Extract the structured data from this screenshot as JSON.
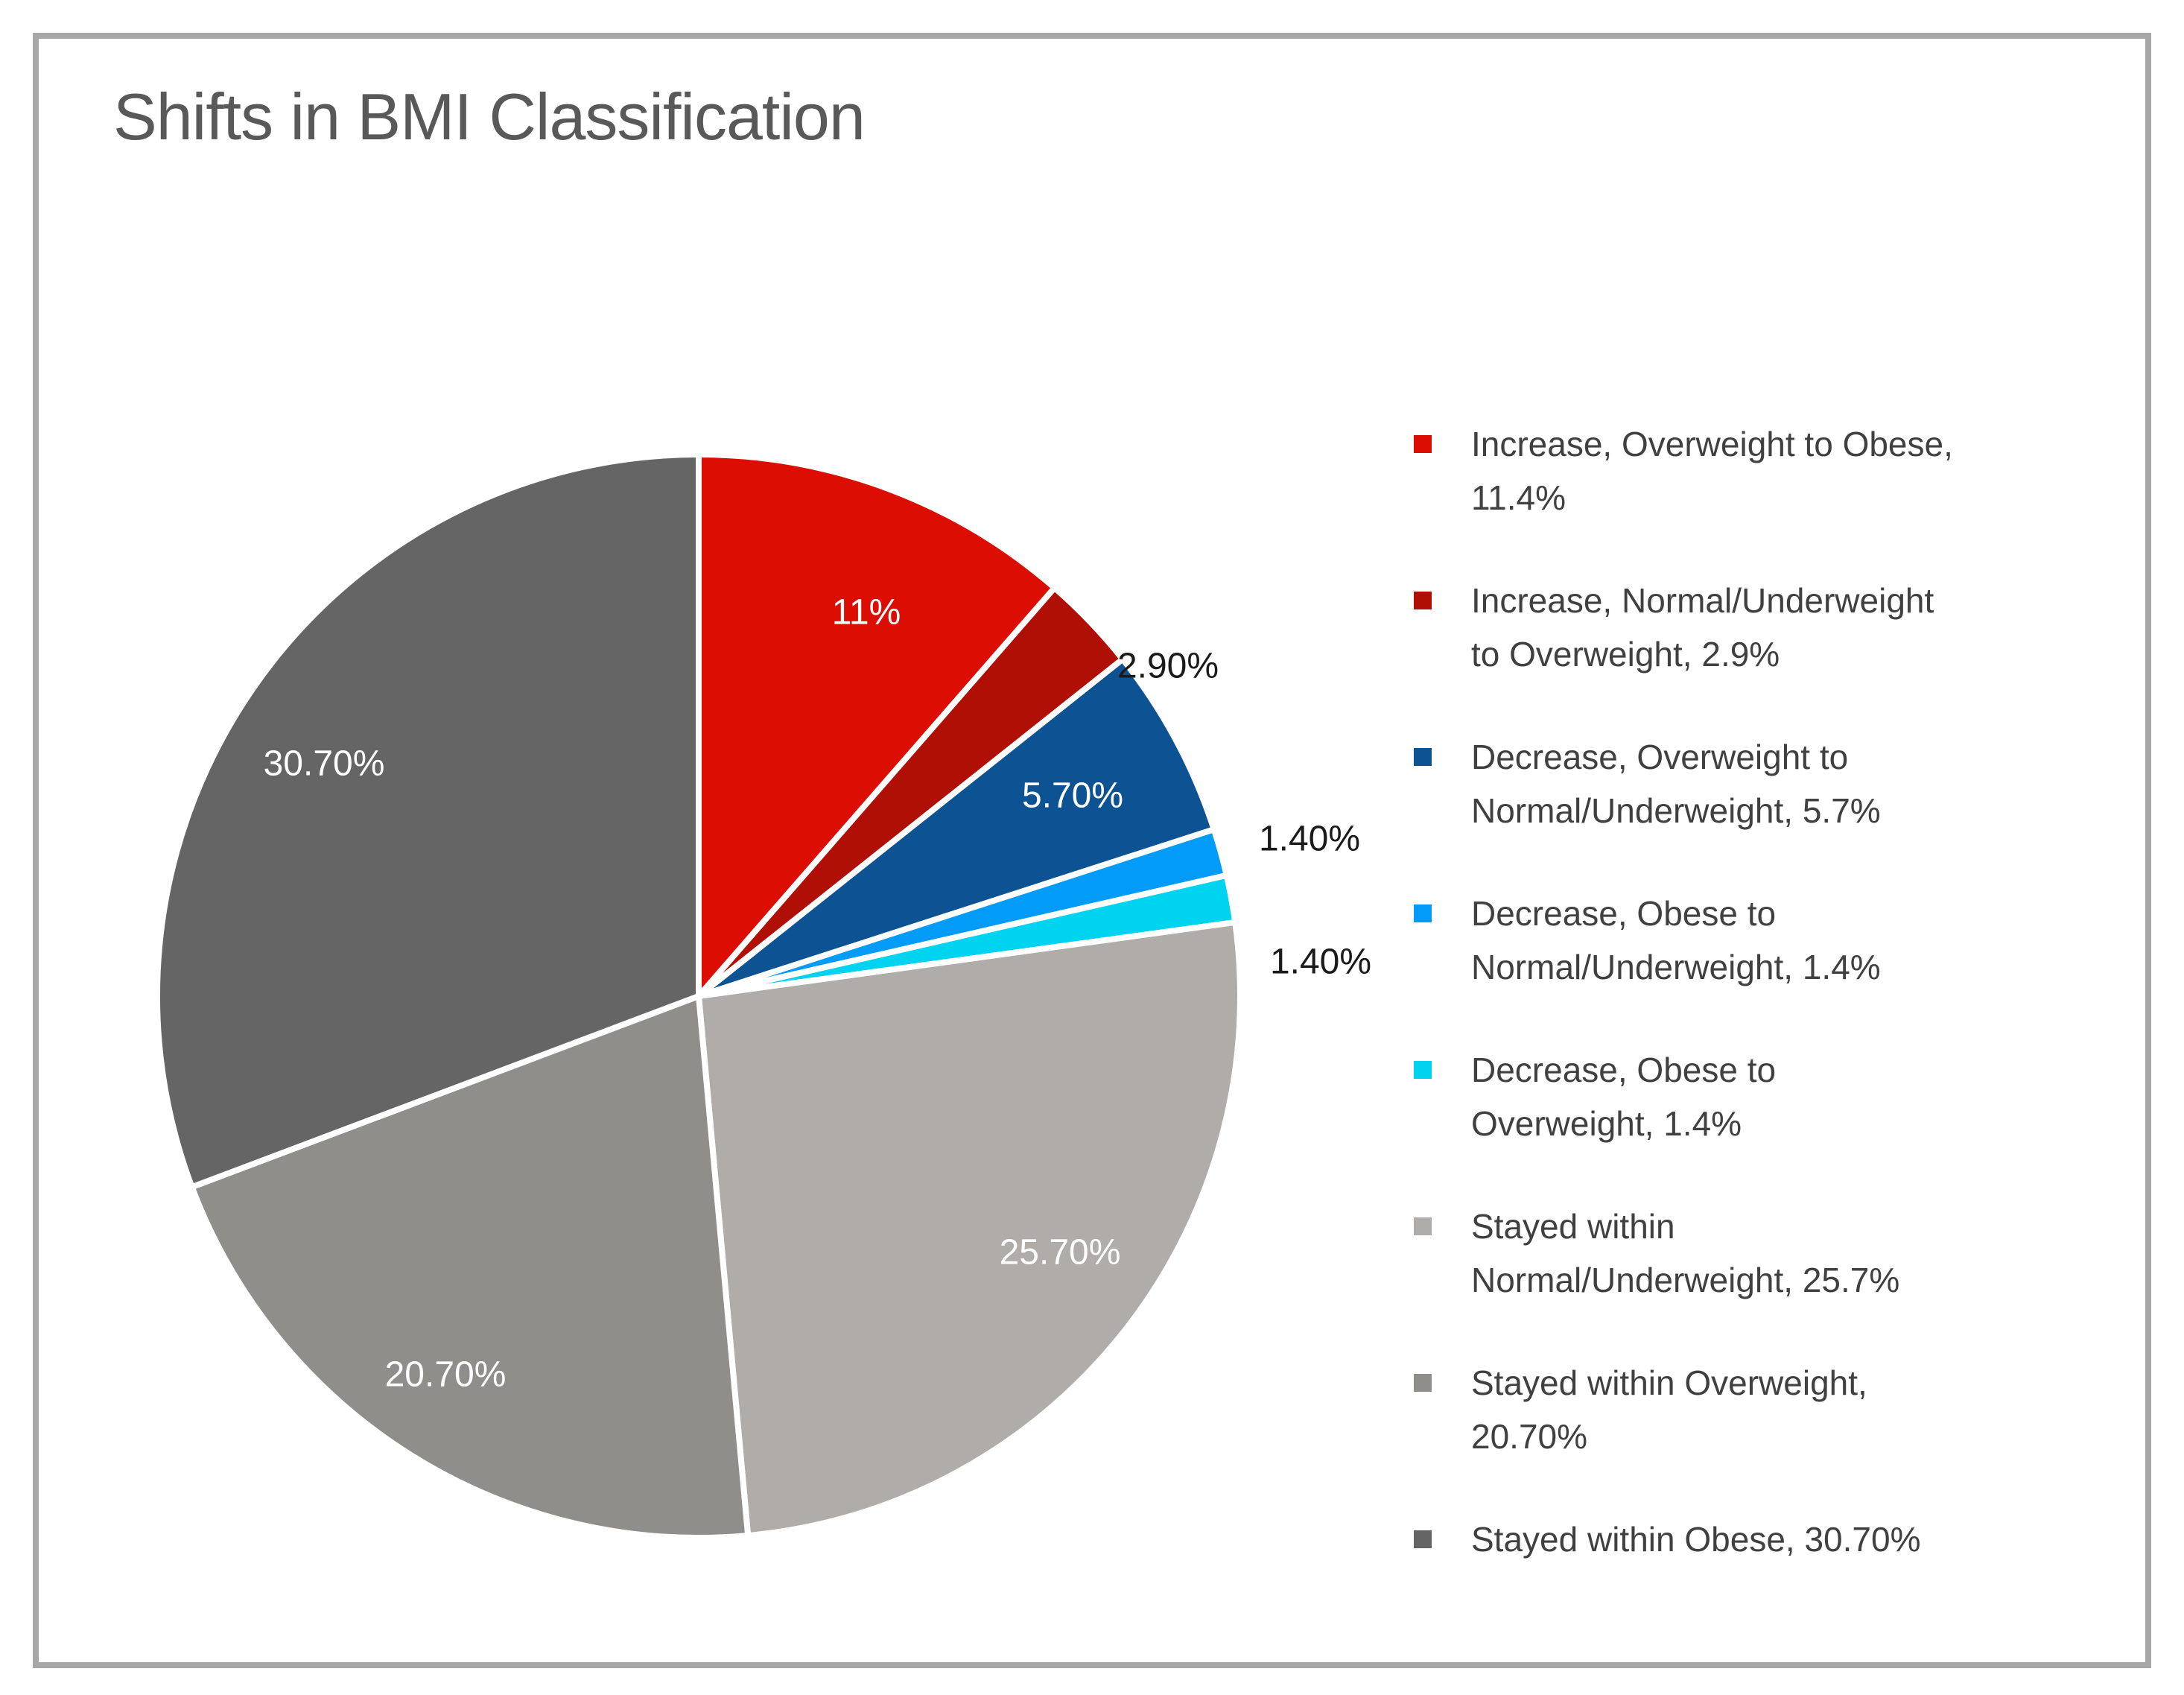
{
  "chart_data": {
    "type": "pie",
    "title": "Shifts in BMI Classification",
    "legend_position": "right",
    "start_angle_deg": 0,
    "direction": "clockwise",
    "units": "percent",
    "slices": [
      {
        "name": "Increase, Overweight to Obese",
        "value": 11.4,
        "pie_label": "11%",
        "label_placement": "inside",
        "color": "#DC0E04",
        "legend_lines": [
          "Increase, Overweight to Obese,",
          "11.4%"
        ]
      },
      {
        "name": "Increase, Normal/Underweight to Overweight",
        "value": 2.9,
        "pie_label": "2.90%",
        "label_placement": "outside",
        "color": "#B00F06",
        "legend_lines": [
          "Increase, Normal/Underweight",
          "to Overweight, 2.9%"
        ]
      },
      {
        "name": "Decrease, Overweight to Normal/Underweight",
        "value": 5.7,
        "pie_label": "5.70%",
        "label_placement": "inside",
        "color": "#0D5394",
        "legend_lines": [
          "Decrease, Overweight to",
          "Normal/Underweight, 5.7%"
        ]
      },
      {
        "name": "Decrease, Obese to Normal/Underweight",
        "value": 1.4,
        "pie_label": "1.40%",
        "label_placement": "outside",
        "color": "#039BF8",
        "legend_lines": [
          "Decrease, Obese to",
          "Normal/Underweight, 1.4%"
        ]
      },
      {
        "name": "Decrease, Obese to Overweight",
        "value": 1.4,
        "pie_label": "1.40%",
        "label_placement": "outside",
        "color": "#00D3F0",
        "legend_lines": [
          "Decrease, Obese to",
          "Overweight, 1.4%"
        ]
      },
      {
        "name": "Stayed within Normal/Underweight",
        "value": 25.7,
        "pie_label": "25.70%",
        "label_placement": "inside",
        "color": "#AFACA9",
        "legend_lines": [
          "Stayed within",
          "Normal/Underweight, 25.7%"
        ]
      },
      {
        "name": "Stayed within Overweight",
        "value": 20.7,
        "pie_label": "20.70%",
        "label_placement": "inside",
        "color": "#908E8B",
        "legend_lines": [
          "Stayed within Overweight,",
          "20.70%"
        ]
      },
      {
        "name": "Stayed within Obese",
        "value": 30.7,
        "pie_label": "30.70%",
        "label_placement": "inside",
        "color": "#656565",
        "legend_lines": [
          "Stayed within Obese, 30.70%"
        ]
      }
    ]
  },
  "styles": {
    "title_color": "#595959",
    "legend_text_color": "#404040",
    "inside_label_color": "#FFFFFF",
    "outside_label_color": "#1A1A1A",
    "frame_border_color": "#A7A7A7",
    "background": "#FFFFFF",
    "slice_border_color": "#FFFFFF"
  }
}
